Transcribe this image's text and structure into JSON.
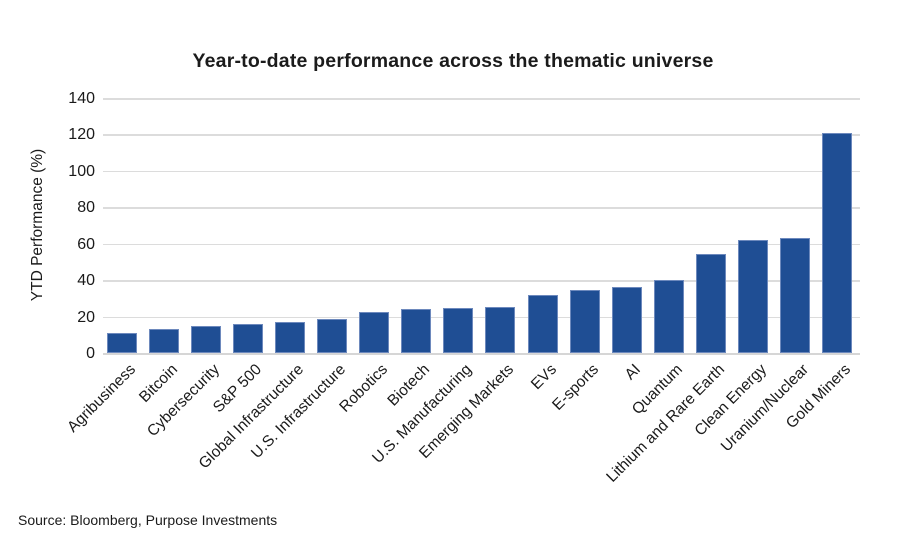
{
  "title": "Year-to-date performance across the thematic universe",
  "source": "Source: Bloomberg, Purpose Investments",
  "colors": {
    "bar": "#1f4e94",
    "bar_edge": "#6d89bd",
    "gridline": "#dcdcdc",
    "text": "#1a1a1a",
    "background": "#ffffff"
  },
  "chart_data": {
    "type": "bar",
    "title": "Year-to-date performance across the thematic universe",
    "xlabel": "",
    "ylabel": "YTD Performance (%)",
    "ylim": [
      0,
      140
    ],
    "yticks": [
      0,
      20,
      40,
      60,
      80,
      100,
      120,
      140
    ],
    "grid": true,
    "legend": "none",
    "categories": [
      "Agribusiness",
      "Bitcoin",
      "Cybersecurity",
      "S&P 500",
      "Global Infrastructure",
      "U.S. Infrastructure",
      "Robotics",
      "Biotech",
      "U.S. Manufacturing",
      "Emerging Markets",
      "EVs",
      "E-sports",
      "AI",
      "Quantum",
      "Lithium and Rare Earth",
      "Clean Energy",
      "Uranium/Nuclear",
      "Gold Miners"
    ],
    "values": [
      11,
      13,
      15,
      16,
      17,
      18.5,
      22.5,
      24,
      24.5,
      25,
      32,
      34.5,
      36.5,
      40,
      54.5,
      62,
      63,
      121
    ]
  }
}
